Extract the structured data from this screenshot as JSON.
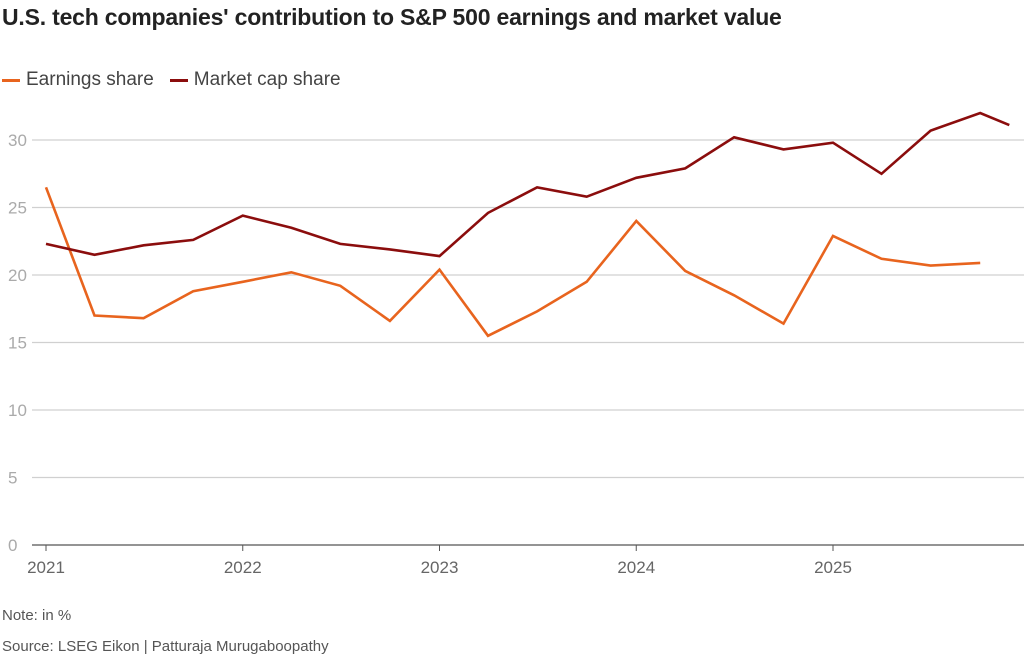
{
  "chart_data": {
    "type": "line",
    "title": "U.S. tech companies' contribution to S&P 500 earnings and market value",
    "xlabel": "",
    "ylabel": "",
    "ylim": [
      0,
      32.5
    ],
    "yticks": [
      0,
      5,
      10,
      15,
      20,
      25,
      30
    ],
    "xticks": [
      "2021",
      "2022",
      "2023",
      "2024",
      "2025"
    ],
    "grid": "horizontal",
    "legend_position": "top-left",
    "series": [
      {
        "name": "Earnings share",
        "color": "#e8641e",
        "x": [
          "2021-01-01",
          "2021-04-01",
          "2021-07-01",
          "2021-10-01",
          "2022-01-01",
          "2022-04-01",
          "2022-07-01",
          "2022-10-01",
          "2023-01-01",
          "2023-04-01",
          "2023-07-01",
          "2023-10-01",
          "2024-01-01",
          "2024-04-01",
          "2024-07-01",
          "2024-10-01",
          "2025-01-01",
          "2025-04-01",
          "2025-07-01",
          "2025-10-01"
        ],
        "y": [
          26.5,
          17.0,
          16.8,
          18.8,
          19.5,
          20.2,
          19.2,
          16.6,
          20.4,
          15.5,
          17.3,
          19.5,
          24.0,
          20.3,
          18.5,
          16.4,
          22.9,
          21.2,
          20.7,
          20.9
        ]
      },
      {
        "name": "Market cap share",
        "color": "#8b0d0d",
        "x": [
          "2021-01-01",
          "2021-04-01",
          "2021-07-01",
          "2021-10-01",
          "2022-01-01",
          "2022-04-01",
          "2022-07-01",
          "2022-10-01",
          "2023-01-01",
          "2023-04-01",
          "2023-07-01",
          "2023-10-01",
          "2024-01-01",
          "2024-04-01",
          "2024-07-01",
          "2024-10-01",
          "2025-01-01",
          "2025-04-01",
          "2025-07-01",
          "2025-10-01",
          "2025-11-24"
        ],
        "y": [
          22.3,
          21.5,
          22.2,
          22.6,
          24.4,
          23.5,
          22.3,
          21.9,
          21.4,
          24.6,
          26.5,
          25.8,
          27.2,
          27.9,
          30.2,
          29.3,
          29.8,
          27.5,
          30.7,
          32.0,
          31.1
        ]
      }
    ]
  },
  "note": "Note: in %",
  "source": "Source: LSEG Eikon  | Patturaja Murugaboopathy"
}
